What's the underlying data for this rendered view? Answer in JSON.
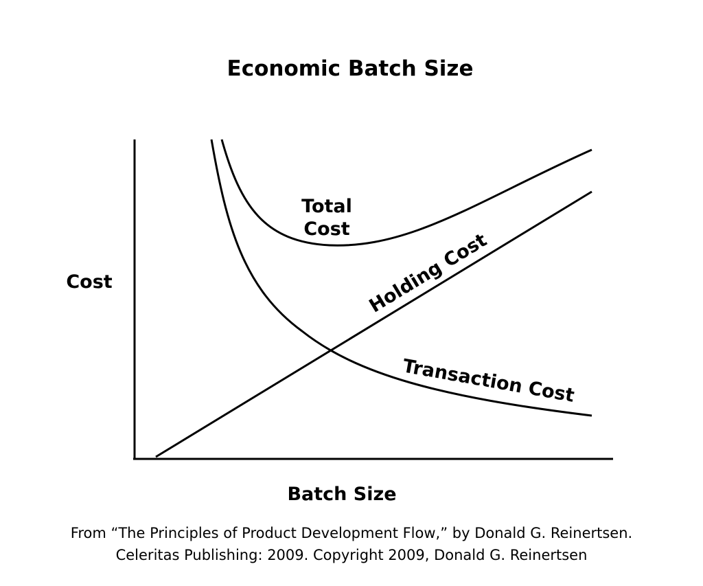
{
  "title": "Economic Batch Size",
  "y_axis_label": "Cost",
  "x_axis_label": "Batch Size",
  "curve_labels": {
    "total_cost": [
      "Total",
      "Cost"
    ],
    "holding_cost": "Holding Cost",
    "transaction_cost": "Transaction Cost"
  },
  "caption": [
    "From “The Principles of Product Development Flow,” by Donald G. Reinertsen.",
    "Celeritas Publishing: 2009. Copyright 2009, Donald G. Reinertsen"
  ]
}
